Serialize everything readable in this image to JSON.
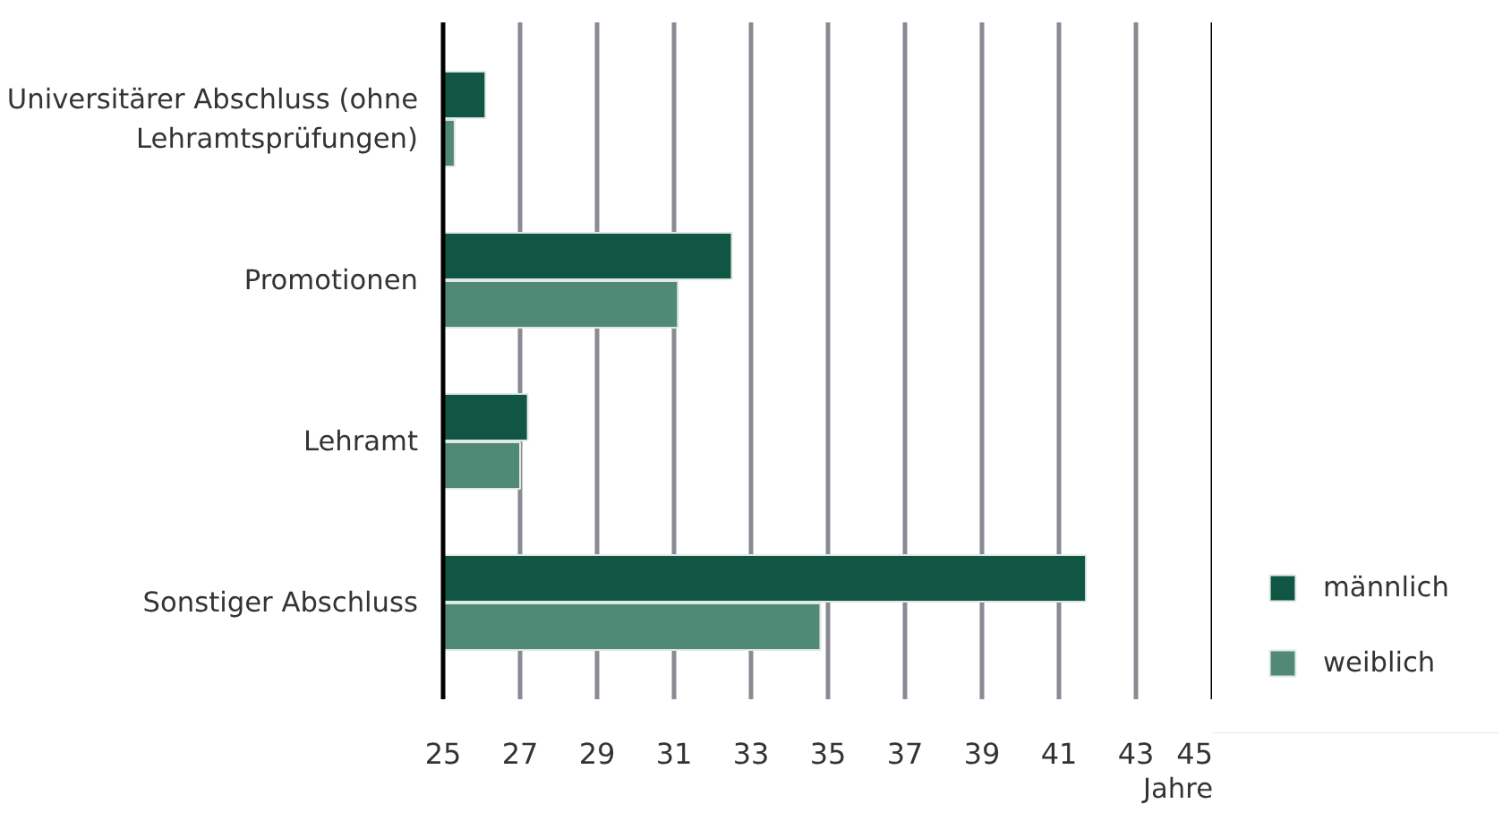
{
  "chart_data": {
    "type": "bar",
    "orientation": "horizontal",
    "xlabel": "Jahre",
    "categories": [
      "Universitärer Abschluss (ohne Lehramtsprüfungen)",
      "Promotionen",
      "Lehramt",
      "Sonstiger Abschluss"
    ],
    "series": [
      {
        "name": "männlich",
        "color": "#115544",
        "values": [
          26.1,
          32.5,
          27.2,
          41.7
        ]
      },
      {
        "name": "weiblich",
        "color": "#508a76",
        "values": [
          25.3,
          31.1,
          27.0,
          34.8
        ]
      }
    ],
    "xlim": [
      25,
      45
    ],
    "xticks": [
      25,
      27,
      29,
      31,
      33,
      35,
      37,
      39,
      41,
      43,
      45
    ],
    "grid": "x",
    "legend": "bottom right"
  }
}
